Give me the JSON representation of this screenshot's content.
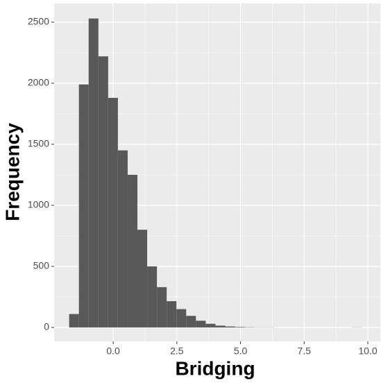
{
  "chart_data": {
    "type": "histogram",
    "x_label": "Bridging",
    "y_label": "Frequency",
    "bins": [
      -1.73,
      -1.347,
      -0.964,
      -0.581,
      -0.198,
      0.185,
      0.568,
      0.951,
      1.334,
      1.717,
      2.1,
      2.483,
      2.866,
      3.249,
      3.632,
      4.015,
      4.398,
      4.781,
      5.164,
      5.547,
      5.93,
      6.313,
      6.696,
      7.079,
      7.462,
      7.845,
      8.228,
      8.611,
      8.994,
      9.377,
      9.76
    ],
    "values": [
      110,
      1990,
      2530,
      2220,
      1880,
      1450,
      1250,
      800,
      500,
      330,
      215,
      150,
      95,
      55,
      30,
      15,
      8,
      4,
      2,
      1,
      1,
      0,
      0,
      0,
      0,
      0,
      0,
      0,
      0,
      1
    ],
    "color": "#595959",
    "xlim": [
      -2.32,
      10.49
    ],
    "ylim": [
      -114,
      2653
    ],
    "xticks": [
      {
        "value": 0,
        "label": "0.0"
      },
      {
        "value": 2.5,
        "label": "2.5"
      },
      {
        "value": 5,
        "label": "5.0"
      },
      {
        "value": 7.5,
        "label": "7.5"
      },
      {
        "value": 10,
        "label": "10.0"
      }
    ],
    "yticks": [
      0,
      500,
      1000,
      1500,
      2000,
      2500
    ],
    "grid": true
  }
}
